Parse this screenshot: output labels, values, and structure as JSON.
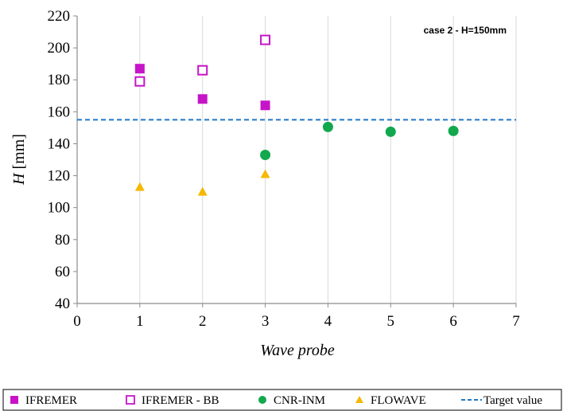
{
  "chart_data": {
    "type": "scatter",
    "annotation": "case 2 - H=150mm",
    "xlabel": "Wave probe",
    "ylabel_var": "H",
    "ylabel_unit": "[mm]",
    "xlim": [
      0,
      7
    ],
    "ylim": [
      40,
      220
    ],
    "xticks": [
      0,
      1,
      2,
      3,
      4,
      5,
      6,
      7
    ],
    "yticks": [
      40,
      60,
      80,
      100,
      120,
      140,
      160,
      180,
      200,
      220
    ],
    "grid": "vertical",
    "legend_position": "bottom",
    "series": [
      {
        "name": "IFREMER",
        "marker": "filled-square",
        "color": "#c614c8",
        "points": [
          {
            "x": 1,
            "y": 187
          },
          {
            "x": 2,
            "y": 168
          },
          {
            "x": 3,
            "y": 164
          }
        ]
      },
      {
        "name": "IFREMER - BB",
        "marker": "open-square",
        "color": "#c614c8",
        "points": [
          {
            "x": 1,
            "y": 179
          },
          {
            "x": 2,
            "y": 186
          },
          {
            "x": 3,
            "y": 205
          }
        ]
      },
      {
        "name": "CNR-INM",
        "marker": "filled-circle",
        "color": "#12a84e",
        "points": [
          {
            "x": 3,
            "y": 133
          },
          {
            "x": 4,
            "y": 150.5
          },
          {
            "x": 5,
            "y": 147.5
          },
          {
            "x": 6,
            "y": 148
          }
        ]
      },
      {
        "name": "FLOWAVE",
        "marker": "filled-triangle",
        "color": "#f6b800",
        "points": [
          {
            "x": 1,
            "y": 113
          },
          {
            "x": 2,
            "y": 110
          },
          {
            "x": 3,
            "y": 121
          }
        ]
      }
    ],
    "target": {
      "name": "Target value",
      "y": 155,
      "color": "#1f78c8",
      "style": "dashed"
    }
  }
}
